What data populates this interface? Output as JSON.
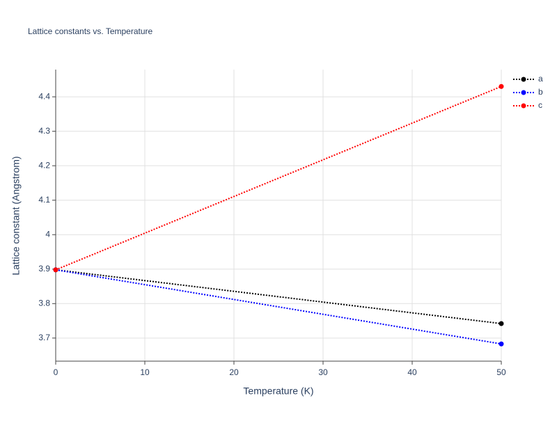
{
  "chart_data": {
    "type": "line",
    "title": "Lattice constants vs. Temperature",
    "x_label": "Temperature (K)",
    "y_label": "Lattice constant (Angstrom)",
    "x": [
      0,
      50
    ],
    "series": [
      {
        "name": "a",
        "color": "#000000",
        "values": [
          3.898,
          3.742
        ]
      },
      {
        "name": "b",
        "color": "#0000ff",
        "values": [
          3.898,
          3.683
        ]
      },
      {
        "name": "c",
        "color": "#ff0000",
        "values": [
          3.898,
          4.43
        ]
      }
    ],
    "xlim": [
      0,
      50
    ],
    "xticks": [
      0,
      10,
      20,
      30,
      40,
      50
    ],
    "ylim": [
      3.633,
      4.479
    ],
    "yticks": [
      3.7,
      3.8,
      3.9,
      4,
      4.1,
      4.2,
      4.3,
      4.4
    ],
    "grid": true,
    "legend": "top-right"
  }
}
